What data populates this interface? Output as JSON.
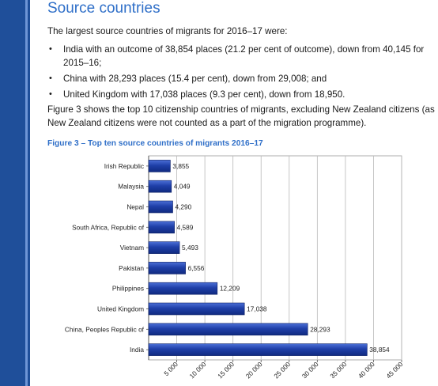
{
  "page": {
    "title": "Source countries",
    "intro": "The largest source countries of migrants for 2016–17 were:",
    "bullets": [
      "India with an outcome of 38,854 places (21.2 per cent of outcome), down from 40,145 for 2015–16;",
      "China with 28,293 places (15.4 per cent), down from 29,008; and",
      "United Kingdom with 17,038 places (9.3 per cent), down from 18,950."
    ],
    "paragraph": "Figure 3 shows the top 10 citizenship countries of migrants, excluding New Zealand citizens (as New Zealand citizens were not counted as a part of the migration programme).",
    "figure_title": "Figure 3 – Top ten source countries of migrants 2016–17"
  },
  "colors": {
    "accent": "#2f6fc8",
    "bar": "#1f3fa8",
    "sidebar": "#1f4f9a"
  },
  "chart_data": {
    "type": "bar",
    "orientation": "horizontal",
    "categories": [
      "Irish Republic",
      "Malaysia",
      "Nepal",
      "South Africa, Republic of",
      "Vietnam",
      "Pakistan",
      "Philippines",
      "United Kingdom",
      "China, Peoples Republic of",
      "India"
    ],
    "values": [
      3855,
      4049,
      4290,
      4589,
      5493,
      6556,
      12209,
      17038,
      28293,
      38854
    ],
    "value_labels": [
      "3,855",
      "4,049",
      "4,290",
      "4,589",
      "5,493",
      "6,556",
      "12,209",
      "17,038",
      "28,293",
      "38,854"
    ],
    "x_ticks": [
      "5 000",
      "10 000",
      "15 000",
      "20 000",
      "25 000",
      "30 000",
      "35 000",
      "40 000",
      "45 000"
    ],
    "x_tick_values": [
      5000,
      10000,
      15000,
      20000,
      25000,
      30000,
      35000,
      40000,
      45000
    ],
    "xlim": [
      0,
      45000
    ],
    "grid": true,
    "legend": "none"
  }
}
